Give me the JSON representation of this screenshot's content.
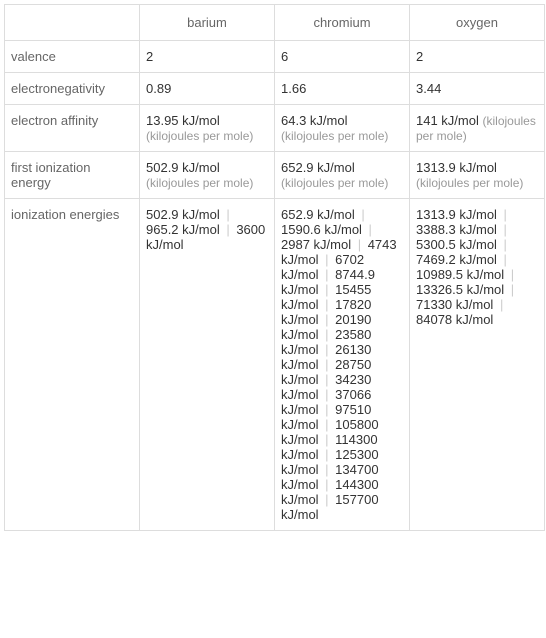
{
  "columns": [
    "barium",
    "chromium",
    "oxygen"
  ],
  "rows": [
    {
      "label": "valence",
      "values": [
        "2",
        "6",
        "2"
      ]
    },
    {
      "label": "electronegativity",
      "values": [
        "0.89",
        "1.66",
        "3.44"
      ]
    },
    {
      "label": "electron affinity",
      "values": [
        {
          "main": "13.95 kJ/mol",
          "sub": "(kilojoules per mole)"
        },
        {
          "main": "64.3 kJ/mol",
          "sub": "(kilojoules per mole)"
        },
        {
          "main": "141 kJ/mol",
          "sub": "(kilojoules per mole)"
        }
      ]
    },
    {
      "label": "first ionization energy",
      "values": [
        {
          "main": "502.9 kJ/mol",
          "sub": "(kilojoules per mole)"
        },
        {
          "main": "652.9 kJ/mol",
          "sub": "(kilojoules per mole)"
        },
        {
          "main": "1313.9 kJ/mol",
          "sub": "(kilojoules per mole)"
        }
      ]
    },
    {
      "label": "ionization energies",
      "values": [
        [
          "502.9 kJ/mol",
          "965.2 kJ/mol",
          "3600 kJ/mol"
        ],
        [
          "652.9 kJ/mol",
          "1590.6 kJ/mol",
          "2987 kJ/mol",
          "4743 kJ/mol",
          "6702 kJ/mol",
          "8744.9 kJ/mol",
          "15455 kJ/mol",
          "17820 kJ/mol",
          "20190 kJ/mol",
          "23580 kJ/mol",
          "26130 kJ/mol",
          "28750 kJ/mol",
          "34230 kJ/mol",
          "37066 kJ/mol",
          "97510 kJ/mol",
          "105800 kJ/mol",
          "114300 kJ/mol",
          "125300 kJ/mol",
          "134700 kJ/mol",
          "144300 kJ/mol",
          "157700 kJ/mol"
        ],
        [
          "1313.9 kJ/mol",
          "3388.3 kJ/mol",
          "5300.5 kJ/mol",
          "7469.2 kJ/mol",
          "10989.5 kJ/mol",
          "13326.5 kJ/mol",
          "71330 kJ/mol",
          "84078 kJ/mol"
        ]
      ]
    }
  ],
  "colors": {
    "border": "#dddddd",
    "text": "#333333",
    "header_text": "#666666",
    "sub_text": "#999999",
    "separator": "#cccccc",
    "background": "#ffffff"
  },
  "font_sizes": {
    "base": 13,
    "sub": 12
  }
}
